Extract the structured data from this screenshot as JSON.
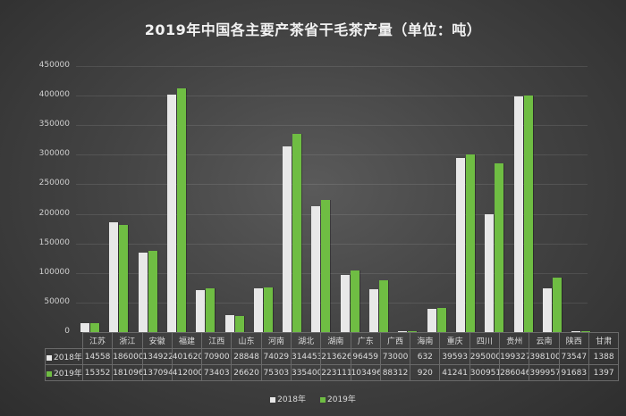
{
  "chart_data": {
    "type": "bar",
    "title": "2019年中国各主要产茶省干毛茶产量（单位：吨）",
    "xlabel": "",
    "ylabel": "",
    "ylim": [
      0,
      450000
    ],
    "yticks": [
      0,
      50000,
      100000,
      150000,
      200000,
      250000,
      300000,
      350000,
      400000,
      450000
    ],
    "grid": true,
    "legend_position": "bottom",
    "categories": [
      "江苏",
      "浙江",
      "安徽",
      "福建",
      "江西",
      "山东",
      "河南",
      "湖北",
      "湖南",
      "广东",
      "广西",
      "海南",
      "重庆",
      "四川",
      "贵州",
      "云南",
      "陕西",
      "甘肃"
    ],
    "series": [
      {
        "name": "2018年",
        "color": "#e8e8e8",
        "values": [
          14558,
          186000,
          134922,
          401620,
          70900,
          28848,
          74029,
          314453,
          213626,
          96459,
          73000,
          632,
          39593,
          295000,
          199327,
          398100,
          73547,
          1388
        ]
      },
      {
        "name": "2019年",
        "color": "#6fbd43",
        "values": [
          15352,
          181096,
          137094,
          412000,
          73403,
          26620,
          75303,
          335400,
          223111,
          103496,
          88312,
          920,
          41241,
          300951,
          286046,
          399957,
          91683,
          1397
        ]
      }
    ],
    "data_table": true
  }
}
